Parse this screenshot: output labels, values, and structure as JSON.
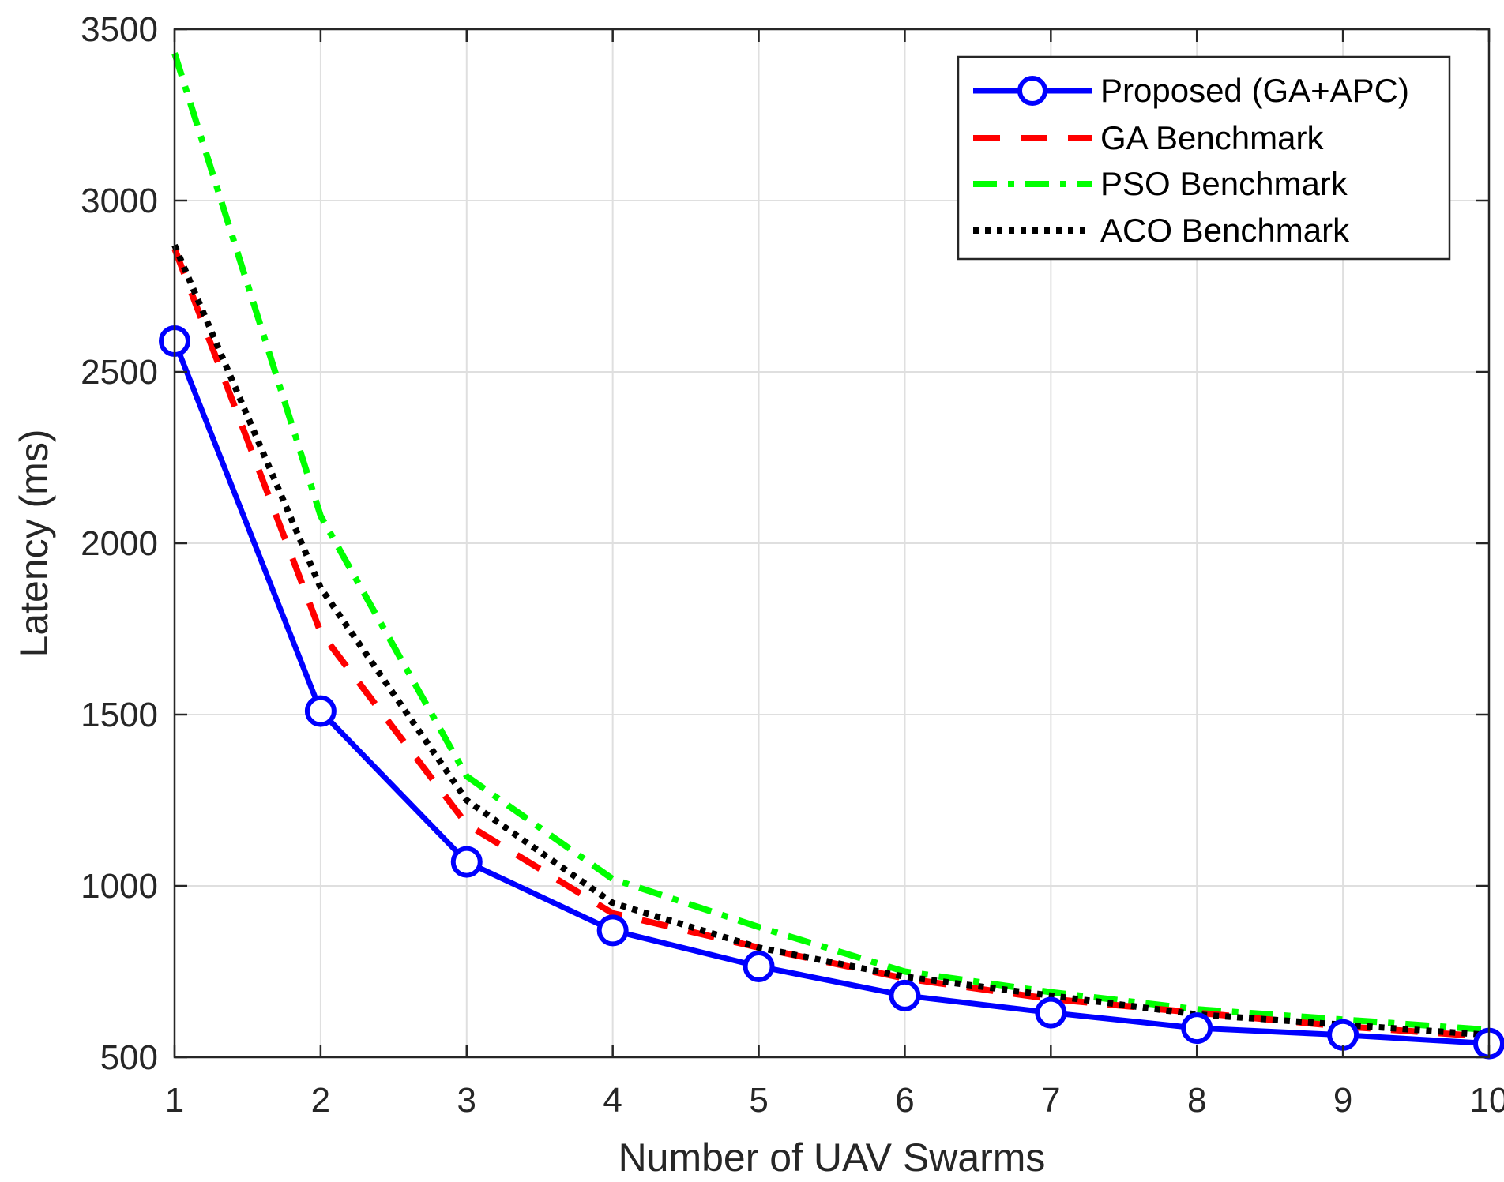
{
  "chart_data": {
    "type": "line",
    "xlabel": "Number of UAV Swarms",
    "ylabel": "Latency (ms)",
    "x": [
      1,
      2,
      3,
      4,
      5,
      6,
      7,
      8,
      9,
      10
    ],
    "xlim": [
      1,
      10
    ],
    "ylim": [
      500,
      3500
    ],
    "xticks": [
      "1",
      "2",
      "3",
      "4",
      "5",
      "6",
      "7",
      "8",
      "9",
      "10"
    ],
    "yticks": [
      "500",
      "1000",
      "1500",
      "2000",
      "2500",
      "3000",
      "3500"
    ],
    "grid": true,
    "legend_position": "top-right",
    "series": [
      {
        "name": "Proposed (GA+APC)",
        "color": "#0000ff",
        "style": "solid-circle-markers",
        "values": [
          2590,
          1510,
          1070,
          870,
          765,
          680,
          630,
          585,
          565,
          540
        ]
      },
      {
        "name": "GA Benchmark",
        "color": "#ff0000",
        "style": "dashed",
        "values": [
          2860,
          1740,
          1180,
          920,
          820,
          730,
          670,
          630,
          590,
          560
        ]
      },
      {
        "name": "PSO Benchmark",
        "color": "#00ff00",
        "style": "dash-dot",
        "values": [
          3430,
          2080,
          1320,
          1020,
          880,
          750,
          690,
          640,
          610,
          580
        ]
      },
      {
        "name": "ACO Benchmark",
        "color": "#000000",
        "style": "dotted",
        "values": [
          2870,
          1870,
          1250,
          950,
          820,
          735,
          680,
          625,
          595,
          565
        ]
      }
    ]
  }
}
